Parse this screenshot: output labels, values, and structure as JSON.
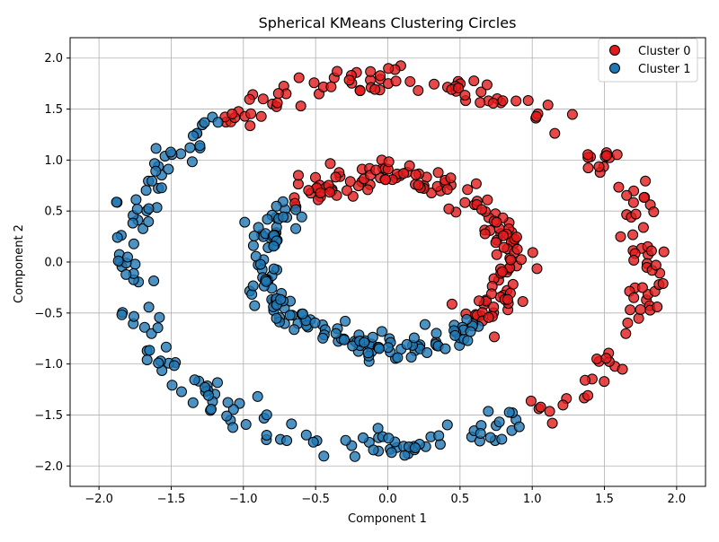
{
  "chart_data": {
    "type": "scatter",
    "title": "Spherical KMeans Clustering Circles",
    "xlabel": "Component 1",
    "ylabel": "Component 2",
    "xlim": [
      -2.2,
      2.2
    ],
    "ylim": [
      -2.2,
      2.2
    ],
    "xticks": [
      -2.0,
      -1.5,
      -1.0,
      -0.5,
      0.0,
      0.5,
      1.0,
      1.5,
      2.0
    ],
    "yticks": [
      -2.0,
      -1.5,
      -1.0,
      -0.5,
      0.0,
      0.5,
      1.0,
      1.5,
      2.0
    ],
    "xtick_labels": [
      "−2.0",
      "−1.5",
      "−1.0",
      "−0.5",
      "0.0",
      "0.5",
      "1.0",
      "1.5",
      "2.0"
    ],
    "ytick_labels": [
      "−2.0",
      "−1.5",
      "−1.0",
      "−0.5",
      "0.0",
      "0.5",
      "1.0",
      "1.5",
      "2.0"
    ],
    "grid": true,
    "legend_position": "top-right",
    "series": [
      {
        "name": "Cluster 0",
        "color": "#e31a1c",
        "description_of_shape": "right half of outer ring (radius ~1.8) and right/top half of inner ring (radius ~0.85)",
        "outer_ring": {
          "radius": 1.8,
          "angle_range_deg": [
            -55,
            130
          ],
          "count": 150
        },
        "inner_ring": {
          "radius": 0.85,
          "angle_range_deg": [
            -45,
            140
          ],
          "count": 150
        }
      },
      {
        "name": "Cluster 1",
        "color": "#1f78b4",
        "description_of_shape": "left/bottom half of outer ring and left/bottom half of inner ring",
        "outer_ring": {
          "radius": 1.8,
          "angle_range_deg": [
            130,
            305
          ],
          "count": 150
        },
        "inner_ring": {
          "radius": 0.85,
          "angle_range_deg": [
            140,
            315
          ],
          "count": 150
        }
      }
    ]
  }
}
